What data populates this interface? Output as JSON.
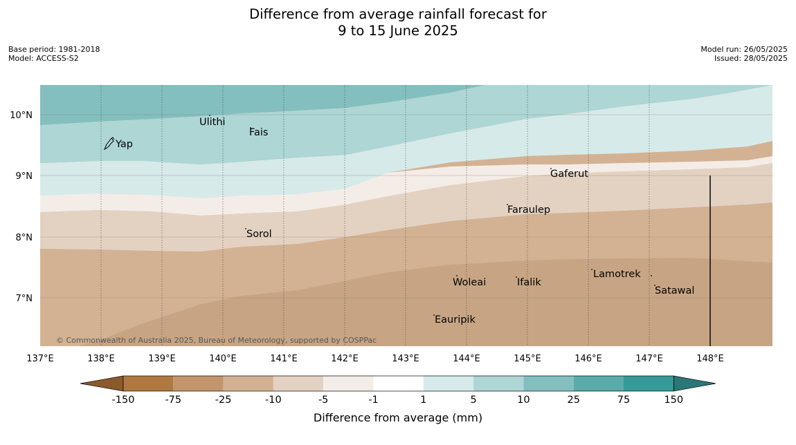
{
  "title_line1": "Difference from average rainfall forecast for",
  "title_line2": "9 to 15 June 2025",
  "meta_left": [
    "Base period: 1981-2018",
    "Model: ACCESS-S2"
  ],
  "meta_right": [
    "Model run: 26/05/2025",
    "Issued: 28/05/2025"
  ],
  "copyright": "© Commonwealth of Australia 2025, Bureau of Meteorology, supported by COSPPac",
  "map": {
    "lon_range": [
      137,
      149
    ],
    "lat_range": [
      6.2,
      10.5
    ],
    "lon_ticks": [
      "137°E",
      "138°E",
      "139°E",
      "140°E",
      "141°E",
      "142°E",
      "143°E",
      "144°E",
      "145°E",
      "146°E",
      "147°E",
      "148°E"
    ],
    "lat_ticks": [
      "10°N",
      "9°N",
      "8°N",
      "7°N"
    ],
    "places": [
      {
        "name": "Ulithi",
        "lon": 139.6,
        "lat": 9.9
      },
      {
        "name": "Fais",
        "lon": 140.45,
        "lat": 9.72
      },
      {
        "name": "Yap",
        "lon": 138.2,
        "lat": 9.47
      },
      {
        "name": "Gaferut",
        "lon": 145.3,
        "lat": 9.0
      },
      {
        "name": "Faraulep",
        "lon": 144.65,
        "lat": 8.43
      },
      {
        "name": "Sorol",
        "lon": 140.4,
        "lat": 8.0
      },
      {
        "name": "Lamotrek",
        "lon": 146.05,
        "lat": 7.35
      },
      {
        "name": "Woleai",
        "lon": 143.75,
        "lat": 7.22
      },
      {
        "name": "Ifalik",
        "lon": 144.8,
        "lat": 7.22
      },
      {
        "name": "Satawal",
        "lon": 147.1,
        "lat": 7.09
      },
      {
        "name": "Eauripik",
        "lon": 143.45,
        "lat": 6.6
      }
    ]
  },
  "colorbar": {
    "label": "Difference from average (mm)",
    "ticks": [
      "-150",
      "-75",
      "-25",
      "-10",
      "-5",
      "-1",
      "1",
      "5",
      "10",
      "25",
      "75",
      "150"
    ],
    "colors": [
      "#8b5a2b",
      "#b07840",
      "#c3956b",
      "#d3b293",
      "#e3d2c2",
      "#f4ede7",
      "#ffffff",
      "#d6eae9",
      "#add6d5",
      "#83bfbe",
      "#5aaba9",
      "#369b98",
      "#2a7777"
    ]
  }
}
